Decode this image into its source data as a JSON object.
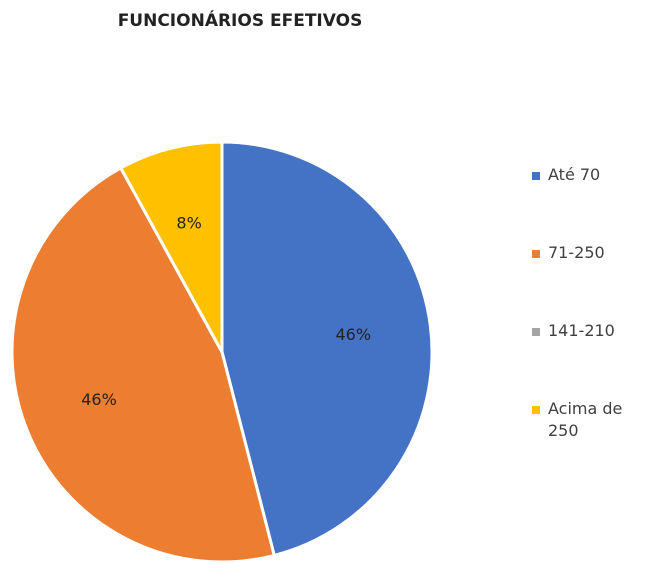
{
  "chart_data": {
    "type": "pie",
    "title": "FUNCIONÁRIOS EFETIVOS",
    "categories": [
      "Até 70",
      "71-250",
      "141-210",
      "Acima de 250"
    ],
    "values": [
      46,
      46,
      0,
      8
    ],
    "value_labels": [
      "46%",
      "46%",
      null,
      "8%"
    ],
    "colors": [
      "#4472c4",
      "#ed7d31",
      "#a5a5a5",
      "#ffc000"
    ]
  }
}
